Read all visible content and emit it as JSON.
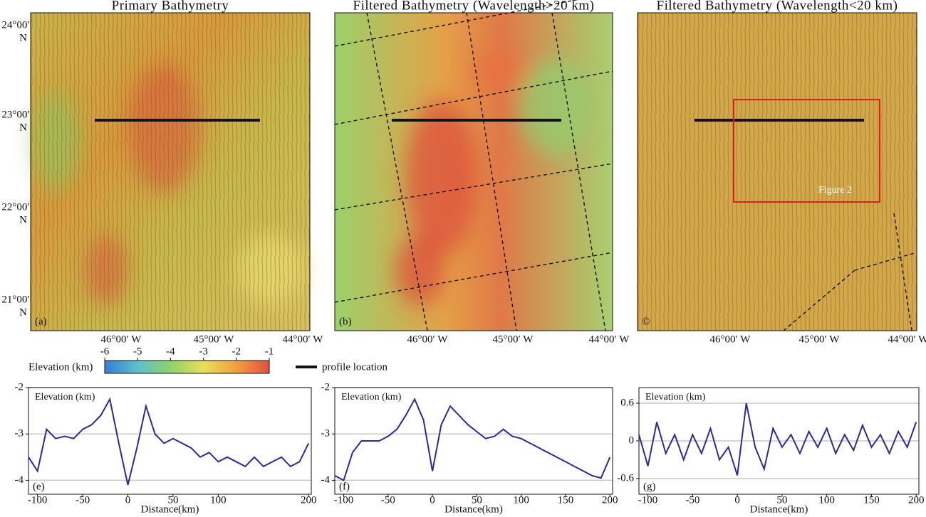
{
  "maps": {
    "titles": [
      "Primary Bathymetry",
      "Filtered  Bathymetry (Wavelength>20 km)",
      "Filtered  Bathymetry (Wavelength<20 km)"
    ],
    "panel_labels": [
      "(a)",
      "(b)",
      "©"
    ],
    "lat_labels": [
      "24°00′",
      "23°00′",
      "22°00′",
      "21°00′"
    ],
    "lat_hemisphere": "N",
    "lon_labels": [
      "46°00′ W",
      "45°00′ W",
      "44°00′ W"
    ],
    "inset_label": "Figure 2"
  },
  "colorbar": {
    "label": "Elevation (km)",
    "clim": [
      -6,
      -1
    ],
    "ticks": [
      -6,
      -5,
      -4,
      -3,
      -2,
      -1
    ],
    "colors": [
      "#3a7bd5",
      "#5cc0c8",
      "#8ed36b",
      "#e6e05a",
      "#f0a040",
      "#e05040"
    ]
  },
  "legend": {
    "label": "profile location",
    "color": "#111111"
  },
  "chart_data": [
    {
      "type": "line",
      "ylabel": "Elevation (km)",
      "xlabel": "Distance(km)",
      "panel_label": "(e)",
      "color": "#2a2a9a",
      "xlim": [
        -110,
        203
      ],
      "xticks": [
        -100,
        -50,
        0,
        50,
        100,
        200
      ],
      "ylim": [
        -4.3,
        -2
      ],
      "yticks": [
        -4,
        -3,
        -2
      ],
      "grid": true,
      "x": [
        -110,
        -100,
        -90,
        -80,
        -70,
        -60,
        -50,
        -40,
        -30,
        -20,
        -10,
        0,
        10,
        20,
        30,
        40,
        50,
        60,
        70,
        80,
        90,
        100,
        110,
        120,
        130,
        140,
        150,
        160,
        170,
        180,
        190,
        200
      ],
      "values": [
        -3.5,
        -3.8,
        -2.9,
        -3.1,
        -3.05,
        -3.1,
        -2.9,
        -2.8,
        -2.6,
        -2.25,
        -3.2,
        -4.1,
        -3.3,
        -2.4,
        -3.0,
        -3.2,
        -3.1,
        -3.2,
        -3.3,
        -3.5,
        -3.4,
        -3.6,
        -3.5,
        -3.6,
        -3.7,
        -3.5,
        -3.7,
        -3.6,
        -3.5,
        -3.7,
        -3.6,
        -3.2
      ]
    },
    {
      "type": "line",
      "ylabel": "Elevation (km)",
      "xlabel": "Distance(km)",
      "panel_label": "(f)",
      "color": "#2a2a9a",
      "xlim": [
        -110,
        203
      ],
      "xticks": [
        -100,
        -50,
        0,
        50,
        100,
        150,
        200
      ],
      "ylim": [
        -4.3,
        -2
      ],
      "yticks": [
        -4,
        -3,
        -2
      ],
      "grid": true,
      "x": [
        -110,
        -100,
        -90,
        -80,
        -70,
        -60,
        -50,
        -40,
        -30,
        -20,
        -10,
        0,
        10,
        20,
        30,
        40,
        50,
        60,
        70,
        80,
        90,
        100,
        110,
        120,
        130,
        140,
        150,
        160,
        170,
        180,
        190,
        200
      ],
      "values": [
        -3.9,
        -4.0,
        -3.4,
        -3.15,
        -3.15,
        -3.15,
        -3.05,
        -2.9,
        -2.6,
        -2.25,
        -2.7,
        -3.8,
        -2.8,
        -2.4,
        -2.6,
        -2.8,
        -2.95,
        -3.1,
        -3.05,
        -2.9,
        -3.05,
        -3.1,
        -3.2,
        -3.3,
        -3.4,
        -3.5,
        -3.6,
        -3.7,
        -3.8,
        -3.9,
        -3.95,
        -3.5
      ]
    },
    {
      "type": "line",
      "ylabel": "Elevation (km)",
      "xlabel": "Distance(km)",
      "panel_label": "(g)",
      "color": "#2a2a9a",
      "xlim": [
        -110,
        203
      ],
      "xticks": [
        -100,
        -50,
        0,
        50,
        100,
        150,
        200
      ],
      "ylim": [
        -0.85,
        0.85
      ],
      "yticks": [
        -0.6,
        0,
        0.6
      ],
      "grid": true,
      "x": [
        -110,
        -100,
        -90,
        -80,
        -70,
        -60,
        -50,
        -40,
        -30,
        -20,
        -10,
        0,
        10,
        20,
        30,
        40,
        50,
        60,
        70,
        80,
        90,
        100,
        110,
        120,
        130,
        140,
        150,
        160,
        170,
        180,
        190,
        200
      ],
      "values": [
        0.1,
        -0.4,
        0.3,
        -0.2,
        0.1,
        -0.3,
        0.1,
        -0.2,
        0.2,
        -0.3,
        -0.1,
        -0.55,
        0.6,
        -0.1,
        -0.45,
        0.2,
        -0.1,
        0.1,
        -0.2,
        0.15,
        -0.1,
        0.2,
        -0.2,
        0.1,
        -0.15,
        0.25,
        -0.1,
        0.1,
        -0.2,
        0.15,
        -0.1,
        0.3
      ]
    }
  ]
}
